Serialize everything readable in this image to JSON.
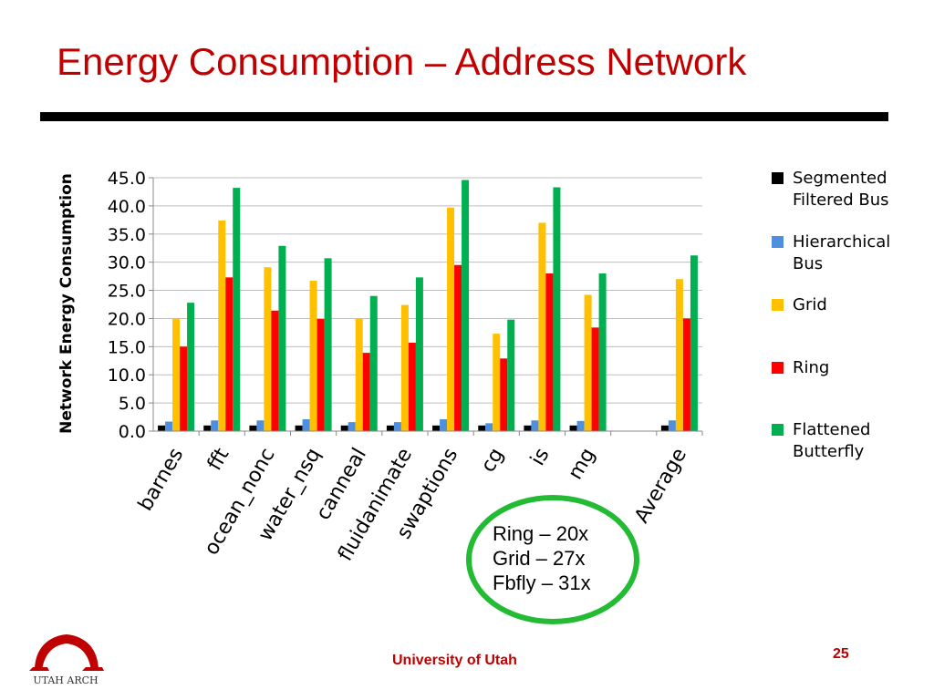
{
  "slide": {
    "title": "Energy Consumption – Address Network",
    "footer": "University of Utah",
    "page_number": "25",
    "logo_text": "UTAH ARCH"
  },
  "annotation": {
    "lines": [
      "Ring – 20x",
      "Grid – 27x",
      "Fbfly – 31x"
    ],
    "color": "#22bb33"
  },
  "chart_data": {
    "type": "bar",
    "title": "",
    "xlabel": "",
    "ylabel": "Network Energy Consumption",
    "ylim": [
      0,
      45
    ],
    "yticks": [
      "0.0",
      "5.0",
      "10.0",
      "15.0",
      "20.0",
      "25.0",
      "30.0",
      "35.0",
      "40.0",
      "45.0"
    ],
    "grid": true,
    "legend_position": "right",
    "categories": [
      "barnes",
      "fft",
      "ocean_nonc",
      "water_nsq",
      "canneal",
      "fluidanimate",
      "swaptions",
      "cg",
      "is",
      "mg",
      "",
      "Average"
    ],
    "series": [
      {
        "name": "Segmented Filtered Bus",
        "color": "#000000",
        "values": [
          1.0,
          1.0,
          1.0,
          1.0,
          1.0,
          1.0,
          1.0,
          1.0,
          1.0,
          1.0,
          null,
          1.0
        ]
      },
      {
        "name": "Hierarchical Bus",
        "color": "#4f8fdf",
        "values": [
          1.7,
          1.9,
          1.9,
          2.1,
          1.6,
          1.6,
          2.1,
          1.4,
          1.9,
          1.8,
          null,
          1.9
        ]
      },
      {
        "name": "Grid",
        "color": "#ffc000",
        "values": [
          19.9,
          37.4,
          29.1,
          26.7,
          20.0,
          22.4,
          39.7,
          17.3,
          37.0,
          24.2,
          null,
          27.0
        ]
      },
      {
        "name": "Ring",
        "color": "#ff0000",
        "values": [
          15.0,
          27.3,
          21.4,
          19.9,
          13.9,
          15.7,
          29.5,
          12.9,
          28.0,
          18.4,
          null,
          20.0
        ]
      },
      {
        "name": "Flattened Butterfly",
        "color": "#00b050",
        "values": [
          22.8,
          43.2,
          32.9,
          30.7,
          24.0,
          27.3,
          44.6,
          19.8,
          43.3,
          28.0,
          null,
          31.2
        ]
      }
    ]
  },
  "legend": {
    "items": [
      {
        "label": "Segmented Filtered Bus",
        "color": "#000000"
      },
      {
        "label": "Hierarchical Bus",
        "color": "#4f8fdf"
      },
      {
        "label": "Grid",
        "color": "#ffc000"
      },
      {
        "label": "Ring",
        "color": "#ff0000"
      },
      {
        "label": "Flattened Butterfly",
        "color": "#00b050"
      }
    ]
  }
}
